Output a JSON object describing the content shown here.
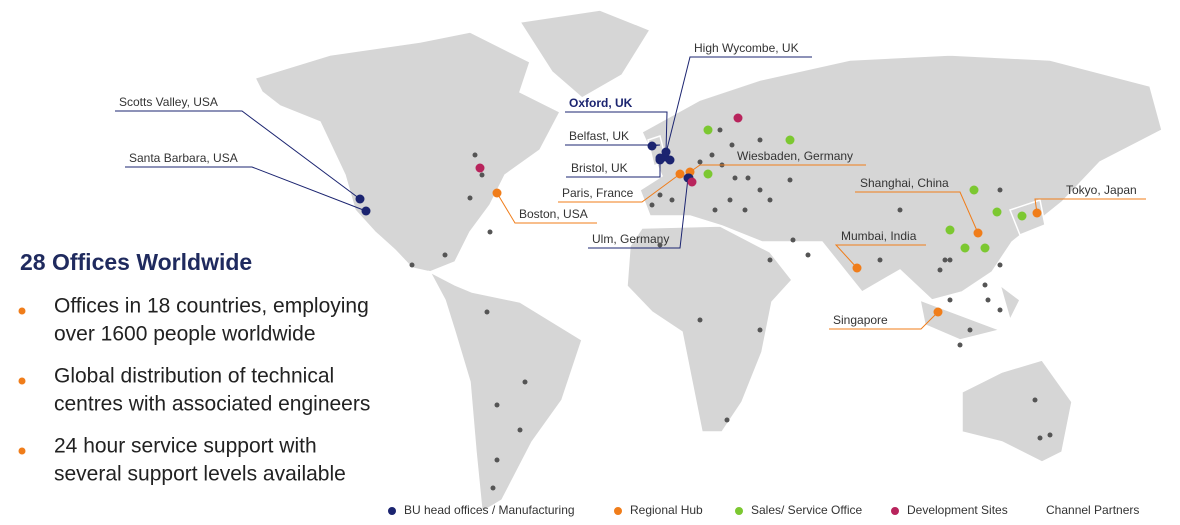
{
  "title": "28 Offices Worldwide",
  "bullets": [
    [
      "Offices in 18 countries, employing",
      "over 1600 people worldwide"
    ],
    [
      "Global distribution of technical",
      "centres with associated engineers"
    ],
    [
      "24 hour service support with",
      "several support levels available"
    ]
  ],
  "offices": [
    {
      "label": "High Wycombe, UK"
    },
    {
      "label": "Scotts Valley, USA"
    },
    {
      "label": "Oxford, UK"
    },
    {
      "label": "Belfast, UK"
    },
    {
      "label": "Santa Barbara, USA"
    },
    {
      "label": "Bristol, UK"
    },
    {
      "label": "Wiesbaden, Germany"
    },
    {
      "label": "Shanghai, China"
    },
    {
      "label": "Tokyo, Japan"
    },
    {
      "label": "Paris, France"
    },
    {
      "label": "Boston, USA"
    },
    {
      "label": "Ulm, Germany"
    },
    {
      "label": "Mumbai, India"
    },
    {
      "label": "Singapore"
    }
  ],
  "legend": [
    {
      "name": "BU head offices / Manufacturing",
      "color": "#1b2470"
    },
    {
      "name": "Regional Hub",
      "color": "#f07d1a"
    },
    {
      "name": "Sales/ Service Office",
      "color": "#7cc831"
    },
    {
      "name": "Development Sites",
      "color": "#b8245c"
    },
    {
      "name": "Channel Partners"
    }
  ]
}
